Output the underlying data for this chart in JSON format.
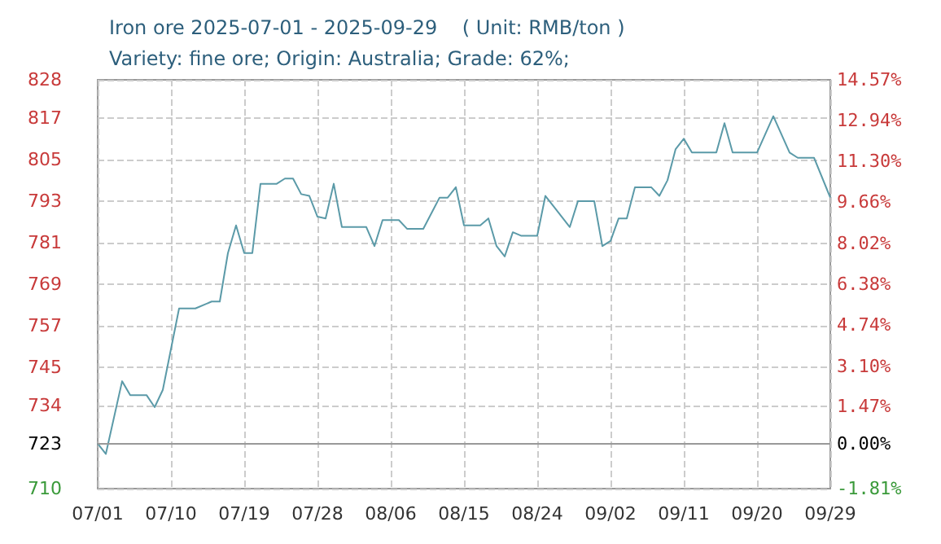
{
  "chart_data": {
    "type": "line",
    "title": "Iron ore 2025-07-01 - 2025-09-29    ( Unit: RMB/ton )",
    "subtitle": "Variety: fine ore; Origin: Australia; Grade: 62%;",
    "x": [
      "2025-07-01",
      "2025-07-02",
      "2025-07-04",
      "2025-07-05",
      "2025-07-07",
      "2025-07-08",
      "2025-07-09",
      "2025-07-11",
      "2025-07-13",
      "2025-07-15",
      "2025-07-16",
      "2025-07-17",
      "2025-07-18",
      "2025-07-19",
      "2025-07-20",
      "2025-07-21",
      "2025-07-23",
      "2025-07-24",
      "2025-07-25",
      "2025-07-26",
      "2025-07-27",
      "2025-07-28",
      "2025-07-29",
      "2025-07-30",
      "2025-07-31",
      "2025-08-03",
      "2025-08-04",
      "2025-08-05",
      "2025-08-07",
      "2025-08-08",
      "2025-08-10",
      "2025-08-12",
      "2025-08-13",
      "2025-08-14",
      "2025-08-15",
      "2025-08-17",
      "2025-08-18",
      "2025-08-19",
      "2025-08-20",
      "2025-08-21",
      "2025-08-22",
      "2025-08-24",
      "2025-08-25",
      "2025-08-28",
      "2025-08-29",
      "2025-08-31",
      "2025-09-01",
      "2025-09-02",
      "2025-09-03",
      "2025-09-04",
      "2025-09-05",
      "2025-09-07",
      "2025-09-08",
      "2025-09-09",
      "2025-09-10",
      "2025-09-11",
      "2025-09-12",
      "2025-09-15",
      "2025-09-16",
      "2025-09-17",
      "2025-09-20",
      "2025-09-22",
      "2025-09-24",
      "2025-09-25",
      "2025-09-27",
      "2025-09-29"
    ],
    "series": [
      {
        "color": "#5b9aa8",
        "values": [
          723,
          720,
          741,
          737,
          737,
          733.5,
          738.5,
          762,
          762,
          764,
          764,
          778,
          786,
          778,
          778,
          798,
          798,
          799.5,
          799.5,
          795,
          794.5,
          788.5,
          788,
          798,
          785.5,
          785.5,
          780,
          787.5,
          787.5,
          785,
          785,
          794,
          794,
          797,
          786,
          786,
          788,
          780,
          777,
          784,
          783,
          783,
          794.5,
          785.5,
          793,
          793,
          780,
          781.5,
          788,
          788,
          797,
          797,
          794.5,
          799,
          808,
          811,
          807,
          807,
          815.5,
          807,
          807,
          817.5,
          807,
          805.5,
          805.5,
          794
        ]
      }
    ],
    "xlim": [
      "2025-07-01",
      "2025-09-29"
    ],
    "xticks": [
      {
        "value": "2025-07-01",
        "label": "07/01"
      },
      {
        "value": "2025-07-10",
        "label": "07/10"
      },
      {
        "value": "2025-07-19",
        "label": "07/19"
      },
      {
        "value": "2025-07-28",
        "label": "07/28"
      },
      {
        "value": "2025-08-06",
        "label": "08/06"
      },
      {
        "value": "2025-08-15",
        "label": "08/15"
      },
      {
        "value": "2025-08-24",
        "label": "08/24"
      },
      {
        "value": "2025-09-02",
        "label": "09/02"
      },
      {
        "value": "2025-09-11",
        "label": "09/11"
      },
      {
        "value": "2025-09-20",
        "label": "09/20"
      },
      {
        "value": "2025-09-29",
        "label": "09/29"
      }
    ],
    "ylim": [
      710,
      828
    ],
    "yticks": [
      710,
      723,
      734,
      745,
      757,
      769,
      781,
      793,
      805,
      817,
      828
    ],
    "y2lim": [
      -1.81,
      14.57
    ],
    "y2ticks": [
      {
        "value": -1.81,
        "label": "-1.81%"
      },
      {
        "value": 0,
        "label": "0.00%"
      },
      {
        "value": 1.47,
        "label": "1.47%"
      },
      {
        "value": 3.1,
        "label": "3.10%"
      },
      {
        "value": 4.74,
        "label": "4.74%"
      },
      {
        "value": 6.38,
        "label": "6.38%"
      },
      {
        "value": 8.02,
        "label": "8.02%"
      },
      {
        "value": 9.66,
        "label": "9.66%"
      },
      {
        "value": 11.3,
        "label": "11.30%"
      },
      {
        "value": 12.94,
        "label": "12.94%"
      },
      {
        "value": 14.57,
        "label": "14.57%"
      }
    ],
    "ref_lines": [
      {
        "axis": "y",
        "value": 723,
        "color": "#999999"
      }
    ],
    "grid": true,
    "marker": "none",
    "line_style": "solid"
  }
}
